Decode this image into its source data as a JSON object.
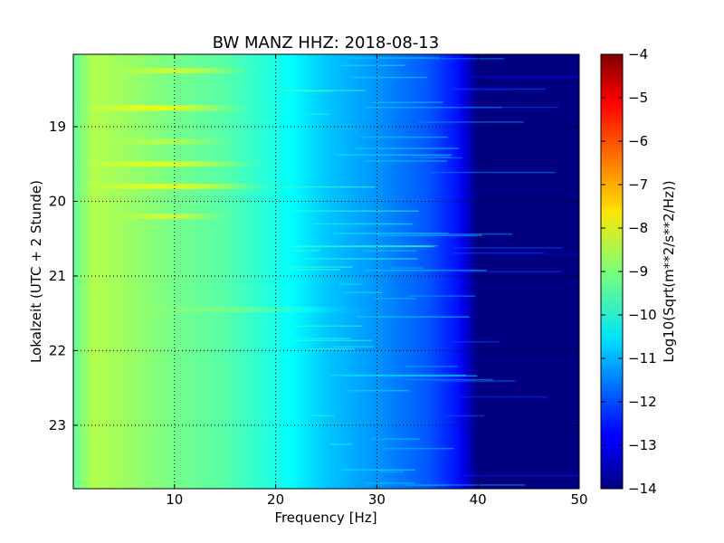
{
  "chart_data": {
    "type": "heatmap",
    "title": "BW MANZ HHZ: 2018-08-13",
    "xlabel": "Frequency [Hz]",
    "ylabel": "Lokalzeit (UTC + 2 Stunde)",
    "colorbar_label": "Log10(Sqrt(m**2/s**2/Hz))",
    "xlim": [
      0,
      50
    ],
    "ylim": [
      18.03,
      23.85
    ],
    "y_inverted": true,
    "x_ticks": [
      10,
      20,
      30,
      40,
      50
    ],
    "y_ticks": [
      19,
      20,
      21,
      22,
      23
    ],
    "colorbar_range": [
      -14,
      -4
    ],
    "colorbar_ticks": [
      -4,
      -5,
      -6,
      -7,
      -8,
      -9,
      -10,
      -11,
      -12,
      -13,
      -14
    ],
    "colormap": "jet",
    "grid": true,
    "spectrum_profile": {
      "frequency_hz": [
        0,
        2,
        5,
        10,
        15,
        20,
        25,
        30,
        35,
        38,
        40,
        50
      ],
      "value": [
        -9.3,
        -8.5,
        -8.7,
        -9.1,
        -9.4,
        -10.0,
        -10.8,
        -11.3,
        -11.9,
        -12.6,
        -14.0,
        -14.0
      ]
    },
    "bright_bands": [
      {
        "time": 18.25,
        "f_start": 3,
        "f_end": 25,
        "delta": 0.9
      },
      {
        "time": 18.75,
        "f_start": 0,
        "f_end": 26,
        "delta": 1.1
      },
      {
        "time": 19.2,
        "f_start": 3,
        "f_end": 22,
        "delta": 0.6
      },
      {
        "time": 19.5,
        "f_start": 0,
        "f_end": 28,
        "delta": 1.0
      },
      {
        "time": 19.8,
        "f_start": 0,
        "f_end": 30,
        "delta": 1.1
      },
      {
        "time": 20.2,
        "f_start": 3,
        "f_end": 22,
        "delta": 0.8
      },
      {
        "time": 21.45,
        "f_start": 5,
        "f_end": 42,
        "delta": 0.4
      }
    ]
  }
}
